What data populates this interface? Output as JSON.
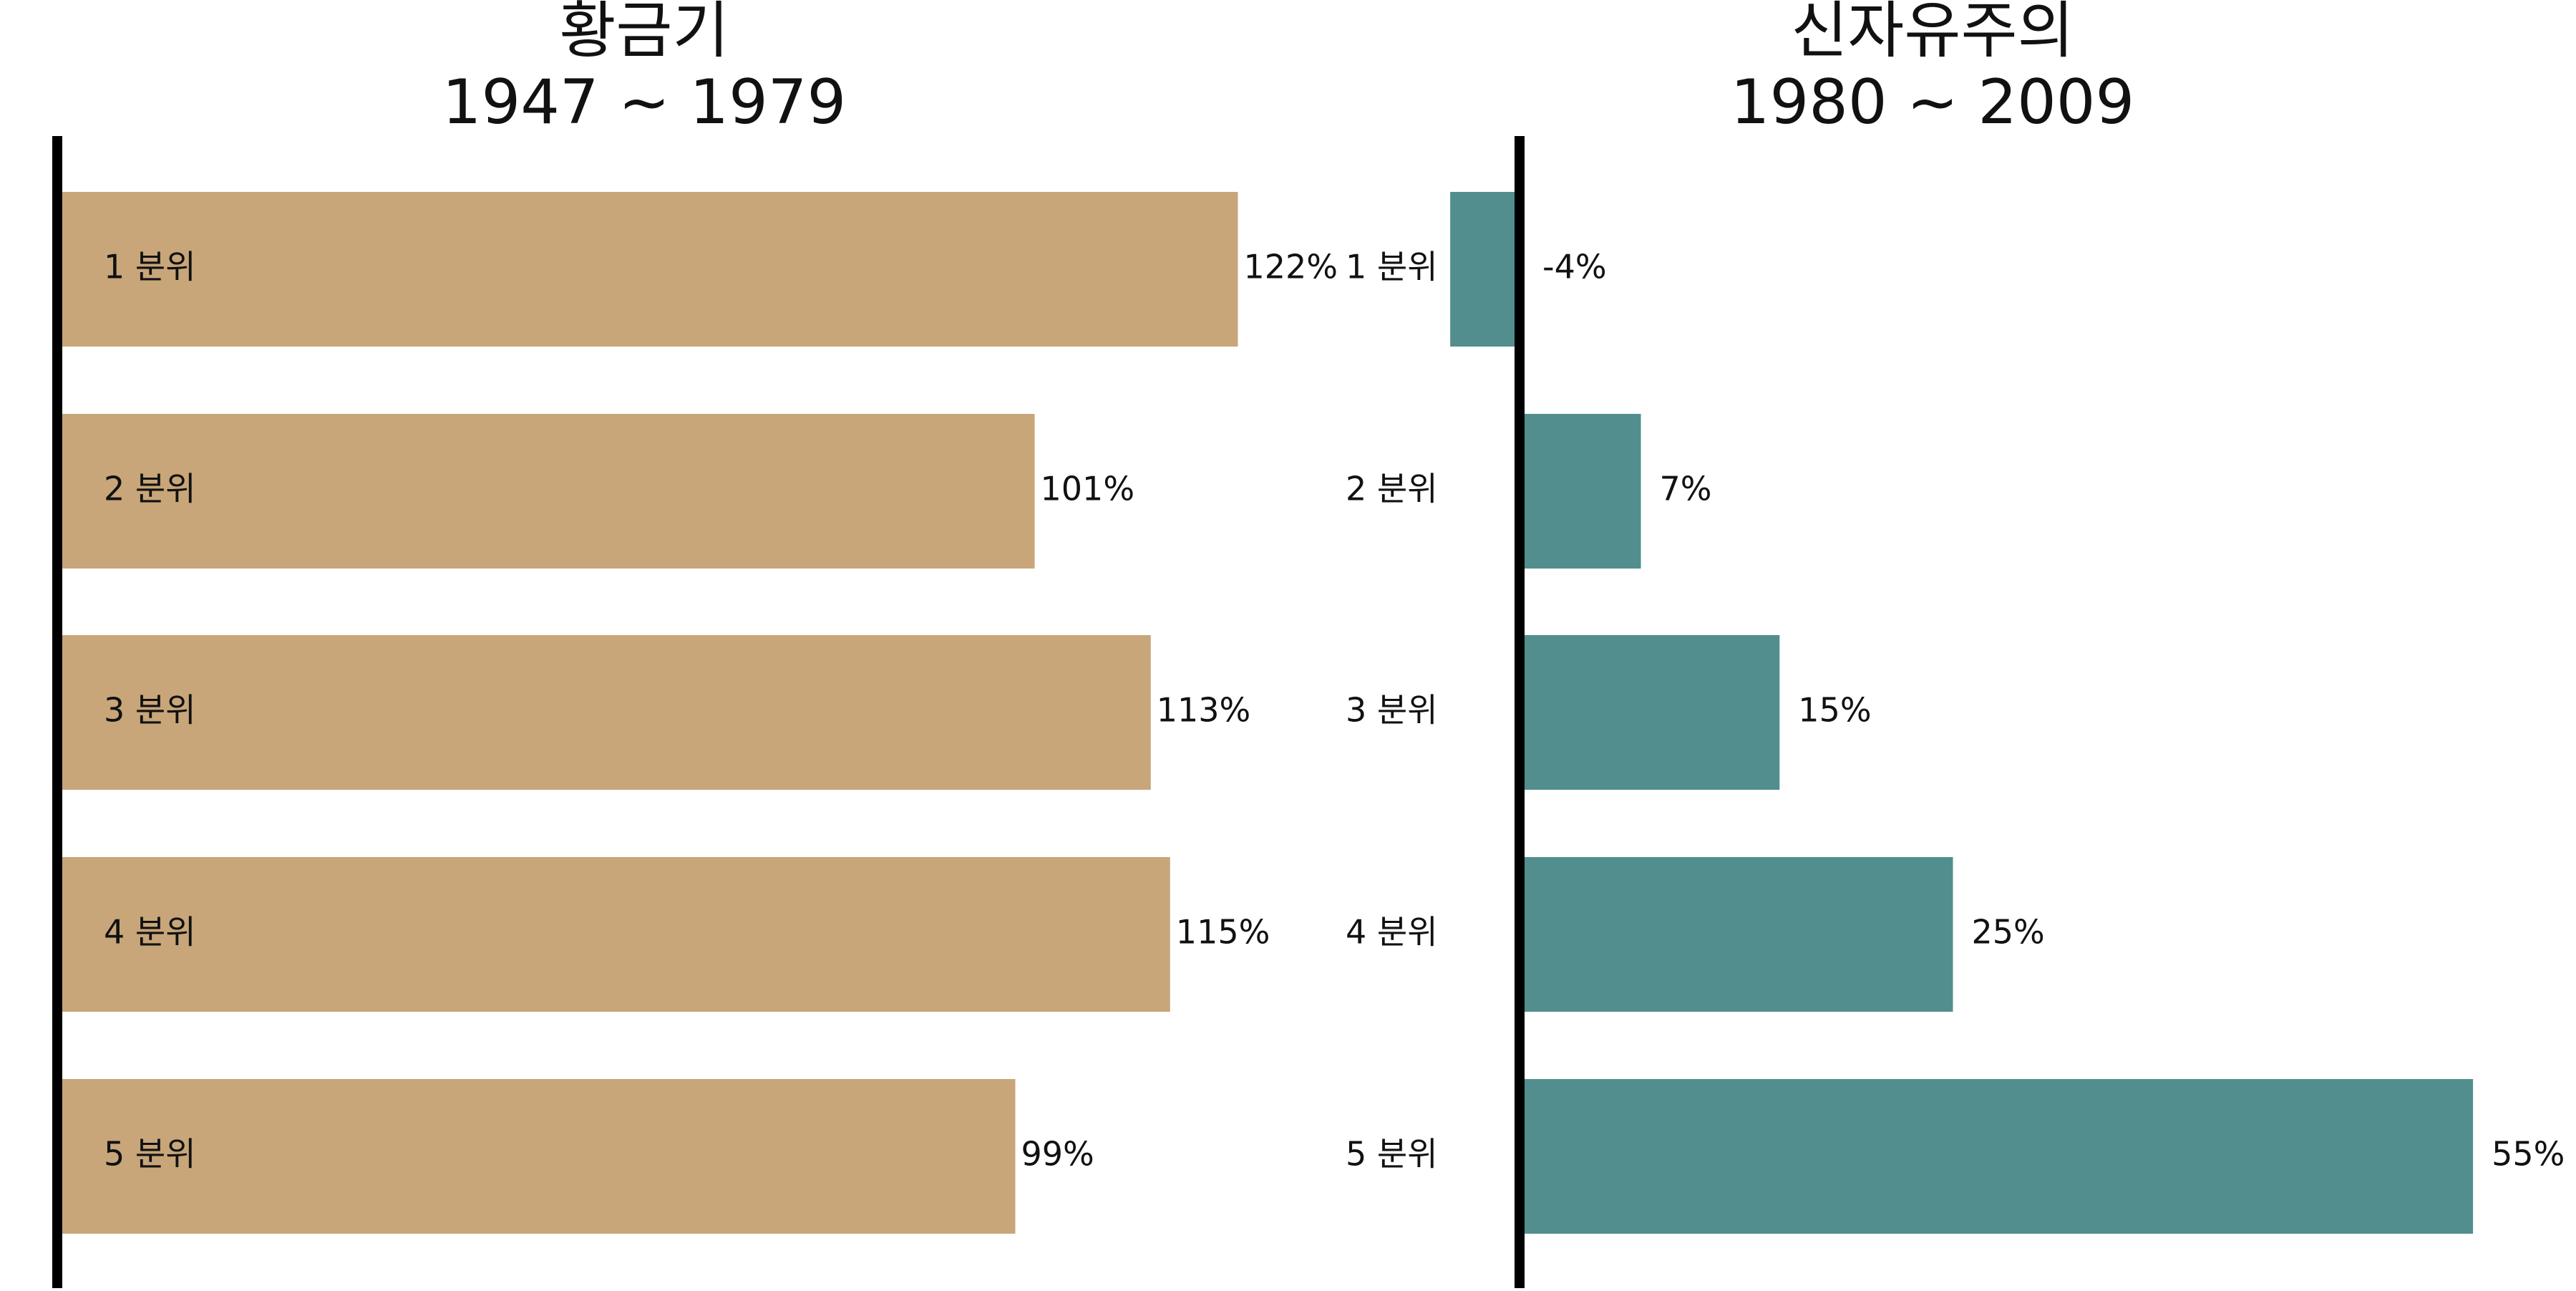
{
  "chart_data": [
    {
      "type": "bar",
      "orientation": "horizontal",
      "title": [
        "황금기",
        "1947 ~ 1979"
      ],
      "xlabel": "",
      "ylabel": "",
      "categories": [
        "1 분위",
        "2 분위",
        "3 분위",
        "4 분위",
        "5 분위"
      ],
      "values": [
        122,
        101,
        113,
        115,
        99
      ],
      "value_labels": [
        "122%",
        "101%",
        "113%",
        "115%",
        "99%"
      ],
      "xlim": [
        0,
        130
      ],
      "grid": false,
      "legend": "none",
      "color": "#C8A679"
    },
    {
      "type": "bar",
      "orientation": "horizontal",
      "title": [
        "신자유주의",
        "1980 ~ 2009"
      ],
      "xlabel": "",
      "ylabel": "",
      "categories": [
        "1 분위",
        "2 분위",
        "3 분위",
        "4 분위",
        "5 분위"
      ],
      "values": [
        -4,
        7,
        15,
        25,
        55
      ],
      "value_labels": [
        "-4%",
        "7%",
        "15%",
        "25%",
        "55%"
      ],
      "xlim": [
        -4,
        60
      ],
      "grid": false,
      "legend": "none",
      "color": "#528E8D"
    }
  ]
}
